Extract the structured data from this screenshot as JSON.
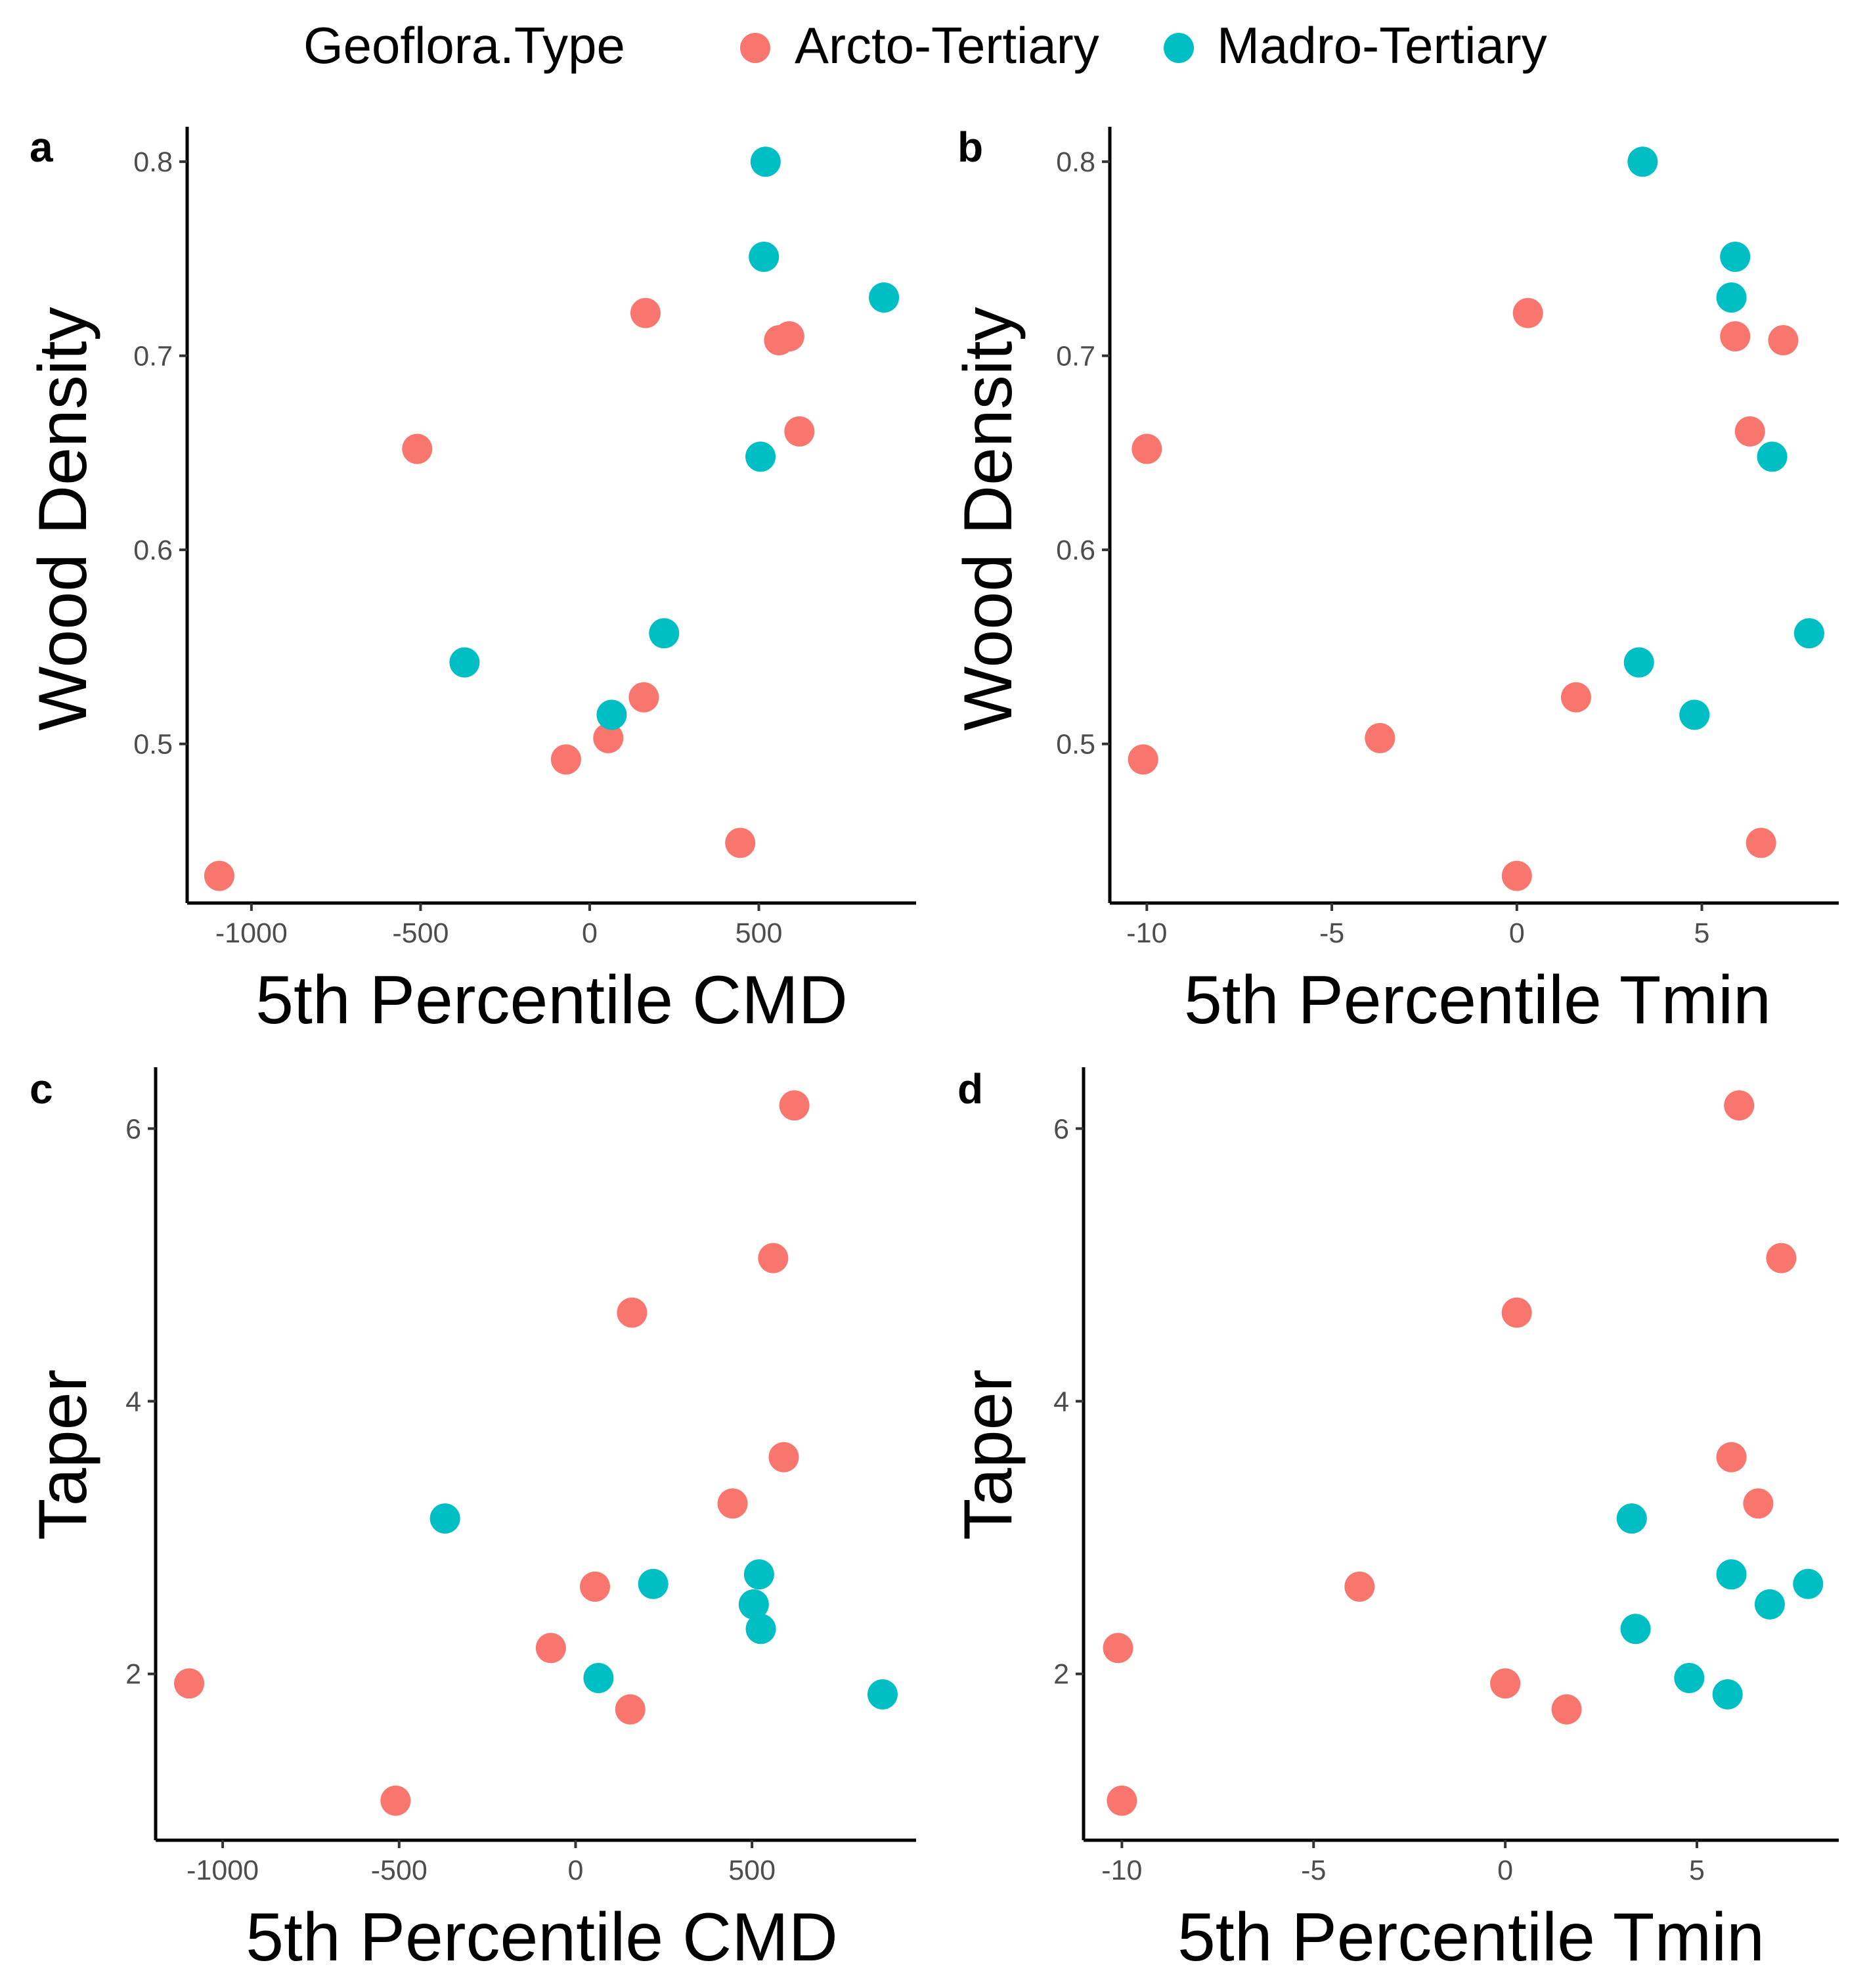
{
  "legend": {
    "title": "Geoflora.Type",
    "items": [
      {
        "label": "Arcto-Tertiary",
        "color": "#F8766D"
      },
      {
        "label": "Madro-Tertiary",
        "color": "#00BFC4"
      }
    ]
  },
  "chart_data": [
    {
      "panel": "a",
      "type": "scatter",
      "xlabel": "5th Percentile CMD",
      "ylabel": "Wood Density",
      "xlim": [
        -1190,
        965
      ],
      "ylim": [
        0.418,
        0.818
      ],
      "xticks": [
        -1000,
        -500,
        0,
        500
      ],
      "yticks": [
        0.5,
        0.6,
        0.7,
        0.8
      ],
      "xtick_labels": [
        "-1000",
        "-500",
        "0",
        "500"
      ],
      "ytick_labels": [
        "0.5",
        "0.6",
        "0.7",
        "0.8"
      ],
      "series": [
        {
          "name": "Arcto-Tertiary",
          "color": "#F8766D",
          "x": [
            -1095,
            -510,
            -70,
            55,
            160,
            165,
            445,
            560,
            590,
            620
          ],
          "y": [
            0.432,
            0.652,
            0.492,
            0.503,
            0.524,
            0.722,
            0.449,
            0.708,
            0.71,
            0.661
          ]
        },
        {
          "name": "Madro-Tertiary",
          "color": "#00BFC4",
          "x": [
            -370,
            65,
            220,
            505,
            515,
            520,
            870
          ],
          "y": [
            0.542,
            0.515,
            0.557,
            0.648,
            0.751,
            0.8,
            0.73
          ]
        }
      ]
    },
    {
      "panel": "b",
      "type": "scatter",
      "xlabel": "5th Percentile Tmin",
      "ylabel": "Wood Density",
      "xlim": [
        -11.0,
        8.7
      ],
      "ylim": [
        0.418,
        0.818
      ],
      "xticks": [
        -10,
        -5,
        0,
        5
      ],
      "yticks": [
        0.5,
        0.6,
        0.7,
        0.8
      ],
      "xtick_labels": [
        "-10",
        "-5",
        "0",
        "5"
      ],
      "ytick_labels": [
        "0.5",
        "0.6",
        "0.7",
        "0.8"
      ],
      "series": [
        {
          "name": "Arcto-Tertiary",
          "color": "#F8766D",
          "x": [
            -10.0,
            -10.1,
            -3.7,
            0.0,
            0.3,
            1.6,
            5.9,
            6.3,
            6.6,
            7.2
          ],
          "y": [
            0.652,
            0.492,
            0.503,
            0.432,
            0.722,
            0.524,
            0.71,
            0.661,
            0.449,
            0.708
          ]
        },
        {
          "name": "Madro-Tertiary",
          "color": "#00BFC4",
          "x": [
            3.3,
            3.4,
            4.8,
            5.8,
            5.9,
            6.9,
            7.9
          ],
          "y": [
            0.542,
            0.8,
            0.515,
            0.73,
            0.751,
            0.648,
            0.557
          ]
        }
      ]
    },
    {
      "panel": "c",
      "type": "scatter",
      "xlabel": "5th Percentile CMD",
      "ylabel": "Taper",
      "xlim": [
        -1190,
        965
      ],
      "ylim": [
        0.78,
        6.45
      ],
      "xticks": [
        -1000,
        -500,
        0,
        500
      ],
      "yticks": [
        2,
        4,
        6
      ],
      "xtick_labels": [
        "-1000",
        "-500",
        "0",
        "500"
      ],
      "ytick_labels": [
        "2",
        "4",
        "6"
      ],
      "series": [
        {
          "name": "Arcto-Tertiary",
          "color": "#F8766D",
          "x": [
            -1095,
            -510,
            -70,
            55,
            160,
            155,
            445,
            560,
            590,
            620
          ],
          "y": [
            1.93,
            1.07,
            2.19,
            2.64,
            4.65,
            1.74,
            3.25,
            5.05,
            3.59,
            6.17
          ]
        },
        {
          "name": "Madro-Tertiary",
          "color": "#00BFC4",
          "x": [
            -370,
            65,
            220,
            505,
            520,
            525,
            870
          ],
          "y": [
            3.14,
            1.97,
            2.66,
            2.51,
            2.73,
            2.33,
            1.85
          ]
        }
      ]
    },
    {
      "panel": "d",
      "type": "scatter",
      "xlabel": "5th Percentile Tmin",
      "ylabel": "Taper",
      "xlim": [
        -11.0,
        8.7
      ],
      "ylim": [
        0.78,
        6.45
      ],
      "xticks": [
        -10,
        -5,
        0,
        5
      ],
      "yticks": [
        2,
        4,
        6
      ],
      "xtick_labels": [
        "-10",
        "-5",
        "0",
        "5"
      ],
      "ytick_labels": [
        "2",
        "4",
        "6"
      ],
      "series": [
        {
          "name": "Arcto-Tertiary",
          "color": "#F8766D",
          "x": [
            -10.1,
            -10.0,
            -3.8,
            0.0,
            1.6,
            5.9,
            6.1,
            6.6,
            7.2,
            0.3
          ],
          "y": [
            2.19,
            1.07,
            2.64,
            1.93,
            1.74,
            3.59,
            6.17,
            3.25,
            5.05,
            4.65
          ]
        },
        {
          "name": "Madro-Tertiary",
          "color": "#00BFC4",
          "x": [
            3.3,
            3.4,
            4.8,
            5.8,
            5.9,
            6.9,
            7.9
          ],
          "y": [
            3.14,
            2.33,
            1.97,
            1.85,
            2.73,
            2.51,
            2.66
          ]
        }
      ]
    }
  ]
}
